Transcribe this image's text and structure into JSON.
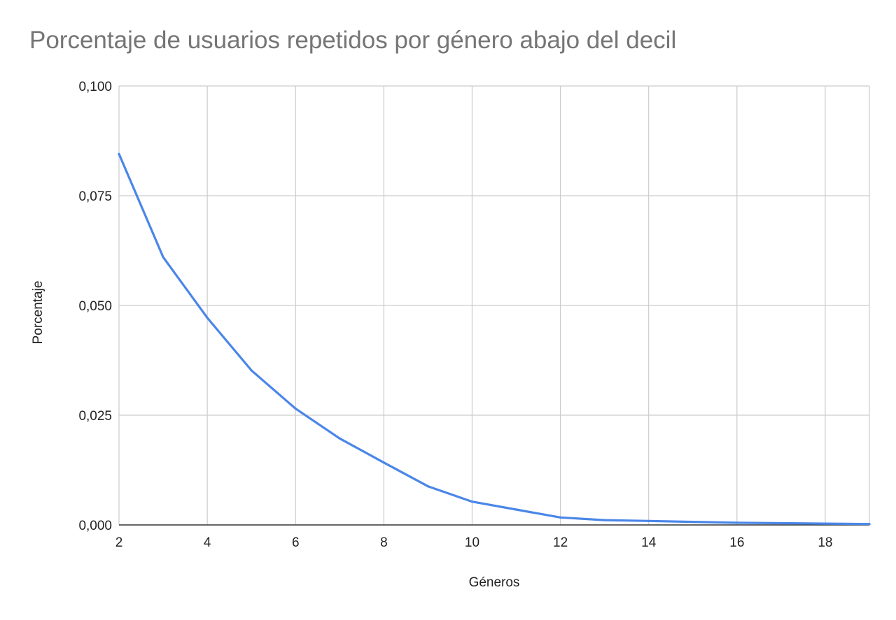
{
  "chart_data": {
    "type": "line",
    "title": "Porcentaje de usuarios repetidos por género abajo del decil",
    "xlabel": "Géneros",
    "ylabel": "Porcentaje",
    "xlim": [
      2,
      19
    ],
    "ylim": [
      0,
      0.1
    ],
    "x_ticks": [
      2,
      4,
      6,
      8,
      10,
      12,
      14,
      16,
      18
    ],
    "x_tick_labels": [
      "2",
      "4",
      "6",
      "8",
      "10",
      "12",
      "14",
      "16",
      "18"
    ],
    "y_ticks": [
      0,
      0.025,
      0.05,
      0.075,
      0.1
    ],
    "y_tick_labels": [
      "0,000",
      "0,025",
      "0,050",
      "0,075",
      "0,100"
    ],
    "grid": true,
    "legend": "none",
    "series": [
      {
        "color": "#4a86e8",
        "x": [
          2,
          3,
          4,
          5,
          6,
          7,
          8,
          9,
          10,
          11,
          12,
          13,
          14,
          15,
          16,
          17,
          18,
          19
        ],
        "values": [
          0.0845,
          0.061,
          0.0472,
          0.0352,
          0.0265,
          0.0197,
          0.0142,
          0.0088,
          0.0053,
          0.0035,
          0.0017,
          0.0011,
          0.0009,
          0.0007,
          0.0005,
          0.0004,
          0.0003,
          0.0002
        ]
      }
    ]
  }
}
